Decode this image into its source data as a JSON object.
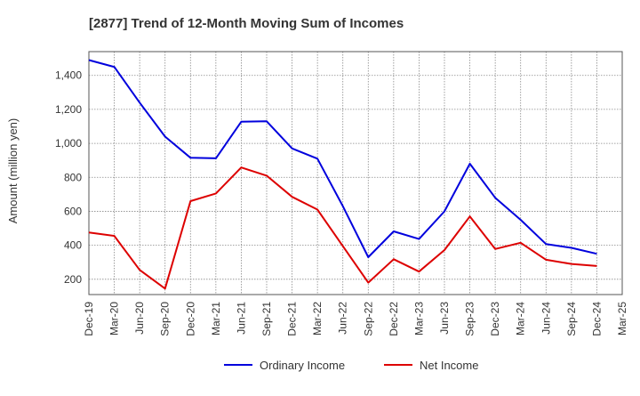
{
  "chart_data": {
    "type": "line",
    "title": "[2877]  Trend of 12-Month Moving Sum of Incomes",
    "xlabel": "",
    "ylabel": "Amount (million yen)",
    "ylim": [
      110,
      1540
    ],
    "yticks": [
      200,
      400,
      600,
      800,
      "1,000",
      "1,200",
      "1,400"
    ],
    "ytick_values": [
      200,
      400,
      600,
      800,
      1000,
      1200,
      1400
    ],
    "categories": [
      "Dec-19",
      "Mar-20",
      "Jun-20",
      "Sep-20",
      "Dec-20",
      "Mar-21",
      "Jun-21",
      "Sep-21",
      "Dec-21",
      "Mar-22",
      "Jun-22",
      "Sep-22",
      "Dec-22",
      "Mar-23",
      "Jun-23",
      "Sep-23",
      "Dec-23",
      "Mar-24",
      "Jun-24",
      "Sep-24",
      "Dec-24",
      "Mar-25"
    ],
    "grid": true,
    "legend_position": "bottom",
    "series": [
      {
        "name": "Ordinary Income",
        "color": "#0000dd",
        "values": [
          1490,
          1450,
          1240,
          1040,
          915,
          912,
          1127,
          1130,
          970,
          910,
          630,
          330,
          482,
          437,
          600,
          880,
          680,
          550,
          407,
          385,
          350,
          null
        ]
      },
      {
        "name": "Net Income",
        "color": "#dd0000",
        "values": [
          475,
          455,
          255,
          145,
          660,
          705,
          858,
          810,
          685,
          610,
          395,
          180,
          318,
          245,
          372,
          570,
          378,
          415,
          315,
          290,
          278,
          null
        ]
      }
    ]
  }
}
